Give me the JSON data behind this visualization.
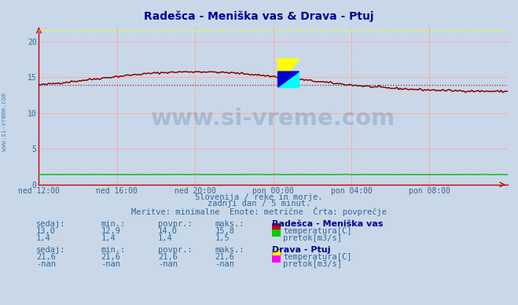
{
  "title": "Radešca - Meniška vas & Drava - Ptuj",
  "title_color": "#000099",
  "bg_color": "#c8d8e8",
  "plot_bg_color": "#c8d8e8",
  "grid_color_major": "#ffaaaa",
  "grid_color_minor": "#ffcccc",
  "xlim": [
    0,
    288
  ],
  "ylim": [
    0,
    22
  ],
  "yticks": [
    0,
    5,
    10,
    15,
    20
  ],
  "xtick_labels": [
    "ned 12:00",
    "ned 16:00",
    "ned 20:00",
    "pon 00:00",
    "pon 04:00",
    "pon 08:00"
  ],
  "xtick_positions": [
    0,
    48,
    96,
    144,
    192,
    240
  ],
  "temp_radesica_color": "#880000",
  "temp_drava_color": "#ffff00",
  "pretok_radesica_color": "#00bb00",
  "pretok_drava_color": "#ff00ff",
  "watermark_text": "www.si-vreme.com",
  "watermark_color": "#1a3a6b",
  "watermark_alpha": 0.18,
  "sidebar_text": "www.si-vreme.com",
  "subtitle1": "Slovenija / reke in morje.",
  "subtitle2": "zadnji dan / 5 minut.",
  "subtitle3": "Meritve: minimalne  Enote: metrične  Črta: povprečje",
  "subtitle_color": "#336699",
  "table_header_color": "#336699",
  "table_value_color": "#336699",
  "table_label_color": "#000099",
  "radesica_sedaj": "13,0",
  "radesica_min": "12,9",
  "radesica_povpr": "14,0",
  "radesica_maks": "15,8",
  "radesica_pretok_sedaj": "1,4",
  "radesica_pretok_min": "1,4",
  "radesica_pretok_povpr": "1,4",
  "radesica_pretok_maks": "1,5",
  "drava_sedaj": "21,6",
  "drava_min": "21,6",
  "drava_povpr": "21,6",
  "drava_maks": "21,6",
  "drava_pretok_sedaj": "-nan",
  "drava_pretok_min": "-nan",
  "drava_pretok_povpr": "-nan",
  "drava_pretok_maks": "-nan",
  "temp_radesica_avg": 14.0,
  "temp_drava_avg": 21.6,
  "pretok_radesica_avg": 1.4,
  "spine_color": "#cc0000",
  "tick_color": "#336699",
  "axis_color": "#cc0000"
}
